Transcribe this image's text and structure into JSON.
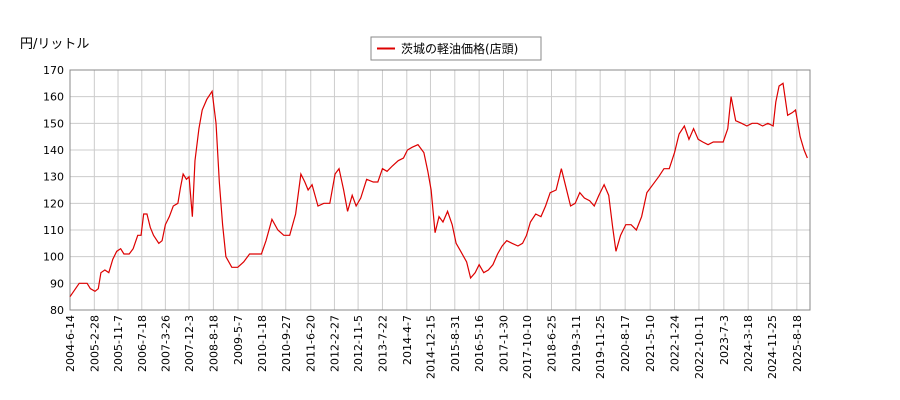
{
  "chart_data": {
    "type": "line",
    "y_label": "円/リットル",
    "x": [
      "2004-6-14",
      "2004-9-20",
      "2004-12-13",
      "2005-1-17",
      "2005-3-7",
      "2005-4-11",
      "2005-5-9",
      "2005-6-20",
      "2005-8-1",
      "2005-9-12",
      "2005-10-24",
      "2005-12-5",
      "2006-1-9",
      "2006-3-6",
      "2006-4-17",
      "2006-6-5",
      "2006-7-10",
      "2006-8-7",
      "2006-9-11",
      "2006-10-16",
      "2006-11-20",
      "2007-1-15",
      "2007-2-19",
      "2007-3-26",
      "2007-5-7",
      "2007-6-18",
      "2007-8-6",
      "2007-9-3",
      "2007-10-1",
      "2007-11-5",
      "2007-12-3",
      "2008-1-7",
      "2008-2-4",
      "2008-3-17",
      "2008-4-21",
      "2008-6-9",
      "2008-8-4",
      "2008-9-15",
      "2008-10-20",
      "2008-11-24",
      "2008-12-29",
      "2009-3-2",
      "2009-5-4",
      "2009-7-6",
      "2009-9-7",
      "2009-11-9",
      "2010-1-11",
      "2010-3-1",
      "2010-5-3",
      "2010-7-5",
      "2010-9-6",
      "2010-11-8",
      "2011-1-10",
      "2011-3-7",
      "2011-4-18",
      "2011-5-23",
      "2011-7-4",
      "2011-9-5",
      "2011-11-7",
      "2012-1-9",
      "2012-3-5",
      "2012-4-16",
      "2012-6-4",
      "2012-7-16",
      "2012-9-3",
      "2012-10-15",
      "2012-12-3",
      "2013-2-4",
      "2013-4-15",
      "2013-6-3",
      "2013-7-22",
      "2013-9-9",
      "2013-11-4",
      "2014-1-6",
      "2014-3-3",
      "2014-4-14",
      "2014-6-2",
      "2014-8-4",
      "2014-10-6",
      "2014-11-17",
      "2014-12-22",
      "2015-2-2",
      "2015-3-16",
      "2015-4-27",
      "2015-6-15",
      "2015-8-3",
      "2015-9-14",
      "2015-11-2",
      "2016-1-4",
      "2016-2-15",
      "2016-4-4",
      "2016-5-16",
      "2016-7-4",
      "2016-8-22",
      "2016-10-10",
      "2016-11-28",
      "2017-1-16",
      "2017-3-6",
      "2017-5-1",
      "2017-7-3",
      "2017-8-21",
      "2017-10-2",
      "2017-11-13",
      "2018-1-8",
      "2018-3-5",
      "2018-4-23",
      "2018-6-11",
      "2018-8-13",
      "2018-10-8",
      "2018-11-26",
      "2019-1-14",
      "2019-3-4",
      "2019-4-22",
      "2019-6-10",
      "2019-8-5",
      "2019-9-23",
      "2019-11-11",
      "2020-1-6",
      "2020-2-24",
      "2020-4-6",
      "2020-5-11",
      "2020-6-29",
      "2020-8-24",
      "2020-10-19",
      "2020-12-14",
      "2021-2-8",
      "2021-4-5",
      "2021-6-7",
      "2021-8-9",
      "2021-10-4",
      "2021-11-29",
      "2022-1-24",
      "2022-3-14",
      "2022-5-9",
      "2022-6-27",
      "2022-8-15",
      "2022-10-3",
      "2022-11-21",
      "2023-1-16",
      "2023-3-13",
      "2023-5-8",
      "2023-6-26",
      "2023-8-14",
      "2023-9-18",
      "2023-11-6",
      "2024-1-8",
      "2024-3-4",
      "2024-4-29",
      "2024-6-24",
      "2024-8-19",
      "2024-10-14",
      "2024-12-9",
      "2025-1-6",
      "2025-2-10",
      "2025-3-24",
      "2025-5-12",
      "2025-6-30",
      "2025-8-4",
      "2025-9-22",
      "2025-11-3",
      "2025-12-8"
    ],
    "series": [
      {
        "name": "茨城の軽油価格(店頭)",
        "color": "#dd0000",
        "values": [
          85,
          90,
          90,
          88,
          87,
          88,
          94,
          95,
          94,
          99,
          102,
          103,
          101,
          101,
          103,
          108,
          108,
          116,
          116,
          111,
          108,
          105,
          106,
          112,
          115,
          119,
          120,
          126,
          131,
          129,
          130,
          115,
          136,
          148,
          155,
          159,
          162,
          150,
          128,
          112,
          100,
          96,
          96,
          98,
          101,
          101,
          101,
          106,
          114,
          110,
          108,
          108,
          116,
          131,
          128,
          125,
          127,
          119,
          120,
          120,
          131,
          133,
          125,
          117,
          123,
          119,
          122,
          129,
          128,
          128,
          133,
          132,
          134,
          136,
          137,
          140,
          141,
          142,
          139,
          132,
          125,
          109,
          115,
          113,
          117,
          112,
          105,
          102,
          98,
          92,
          94,
          97,
          94,
          95,
          97,
          101,
          104,
          106,
          105,
          104,
          105,
          108,
          113,
          116,
          115,
          119,
          124,
          125,
          133,
          126,
          119,
          120,
          124,
          122,
          121,
          119,
          123,
          127,
          123,
          111,
          102,
          108,
          112,
          112,
          110,
          115,
          124,
          127,
          130,
          133,
          133,
          139,
          146,
          149,
          144,
          148,
          144,
          143,
          142,
          143,
          143,
          143,
          148,
          160,
          151,
          150,
          149,
          150,
          150,
          149,
          150,
          149,
          158,
          164,
          165,
          153,
          154,
          155,
          145,
          140,
          137
        ]
      }
    ],
    "xlim": [
      "2004-6-14",
      "2026-1-5"
    ],
    "xticks": [
      "2004-6-14",
      "2005-2-28",
      "2005-11-7",
      "2006-7-18",
      "2007-3-26",
      "2007-12-3",
      "2008-8-18",
      "2009-5-7",
      "2010-1-18",
      "2010-9-27",
      "2011-6-20",
      "2012-2-27",
      "2012-11-5",
      "2013-7-22",
      "2014-4-7",
      "2014-12-15",
      "2015-8-31",
      "2016-5-16",
      "2017-1-30",
      "2017-10-10",
      "2018-6-25",
      "2019-3-11",
      "2019-11-25",
      "2020-8-17",
      "2021-5-10",
      "2022-1-24",
      "2022-10-11",
      "2023-7-3",
      "2024-3-18",
      "2024-11-25",
      "2025-8-18"
    ],
    "ylim": [
      80,
      170
    ],
    "yticks": [
      80,
      90,
      100,
      110,
      120,
      130,
      140,
      150,
      160,
      170
    ],
    "grid": true,
    "legend": "top"
  }
}
